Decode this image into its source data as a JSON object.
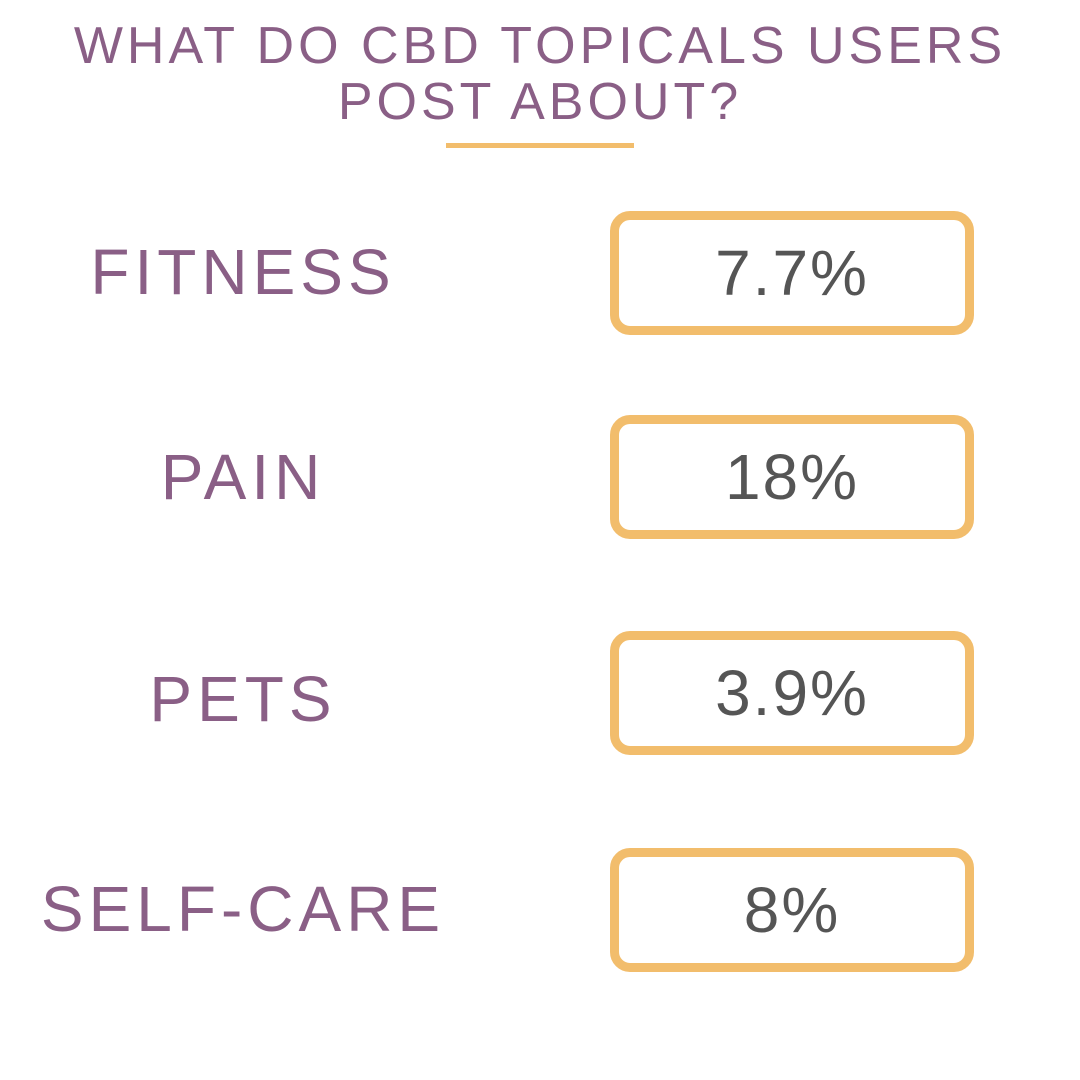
{
  "title": {
    "line1": "WHAT DO CBD TOPICALS USERS",
    "line2": "POST ABOUT?"
  },
  "colors": {
    "label": "#8a5f86",
    "accent": "#f2bd6c",
    "value": "#555555"
  },
  "rows": [
    {
      "label": "FITNESS",
      "value": "7.7%"
    },
    {
      "label": "PAIN",
      "value": "18%"
    },
    {
      "label": "PETS",
      "value": "3.9%"
    },
    {
      "label": "SELF-CARE",
      "value": "8%"
    }
  ]
}
